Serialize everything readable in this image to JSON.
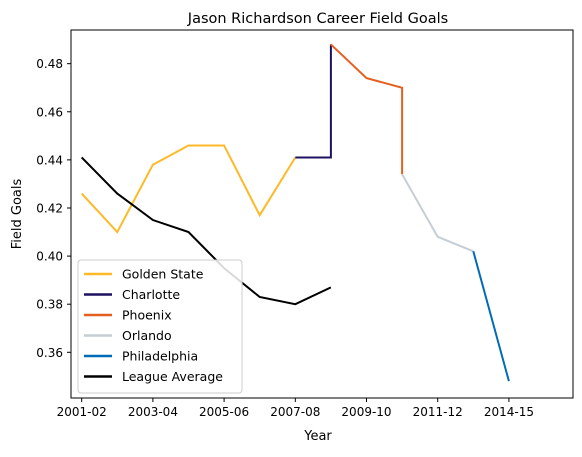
{
  "chart_data": {
    "type": "line",
    "title": "Jason Richardson Career Field Goals",
    "xlabel": "Year",
    "ylabel": "Field Goals",
    "xlim": [
      2000.7,
      2014.8
    ],
    "ylim": [
      0.341,
      0.494
    ],
    "x_ticks": [
      {
        "x": 2001,
        "label": "2001-02"
      },
      {
        "x": 2003,
        "label": "2003-04"
      },
      {
        "x": 2005,
        "label": "2005-06"
      },
      {
        "x": 2007,
        "label": "2007-08"
      },
      {
        "x": 2009,
        "label": "2009-10"
      },
      {
        "x": 2011,
        "label": "2011-12"
      },
      {
        "x": 2013,
        "label": "2014-15"
      }
    ],
    "y_ticks": [
      0.36,
      0.38,
      0.4,
      0.42,
      0.44,
      0.46,
      0.48
    ],
    "y_tick_labels": [
      "0.36",
      "0.38",
      "0.40",
      "0.42",
      "0.44",
      "0.46",
      "0.48"
    ],
    "grid": false,
    "legend_position": "lower-left",
    "series": [
      {
        "name": "Golden State",
        "color": "#FDB927",
        "points": [
          [
            2001,
            0.426
          ],
          [
            2002,
            0.41
          ],
          [
            2003,
            0.438
          ],
          [
            2004,
            0.446
          ],
          [
            2005,
            0.446
          ],
          [
            2006,
            0.417
          ],
          [
            2007,
            0.441
          ]
        ]
      },
      {
        "name": "Charlotte",
        "color": "#1D1160",
        "points": [
          [
            2007,
            0.441
          ],
          [
            2008,
            0.441
          ],
          [
            2008,
            0.488
          ]
        ]
      },
      {
        "name": "Phoenix",
        "color": "#E56020",
        "points": [
          [
            2008,
            0.488
          ],
          [
            2009,
            0.474
          ],
          [
            2010,
            0.47
          ],
          [
            2010,
            0.434
          ]
        ]
      },
      {
        "name": "Orlando",
        "color": "#C4CED4",
        "points": [
          [
            2010,
            0.434
          ],
          [
            2011,
            0.408
          ],
          [
            2012,
            0.402
          ]
        ]
      },
      {
        "name": "Philadelphia",
        "color": "#006BB6",
        "points": [
          [
            2012,
            0.402
          ],
          [
            2013,
            0.348
          ]
        ]
      },
      {
        "name": "League Average",
        "color": "#000000",
        "points": [
          [
            2001,
            0.441
          ],
          [
            2002,
            0.426
          ],
          [
            2003,
            0.415
          ],
          [
            2004,
            0.41
          ],
          [
            2005,
            0.395
          ],
          [
            2006,
            0.383
          ],
          [
            2007,
            0.38
          ],
          [
            2008,
            0.387
          ]
        ]
      }
    ]
  }
}
